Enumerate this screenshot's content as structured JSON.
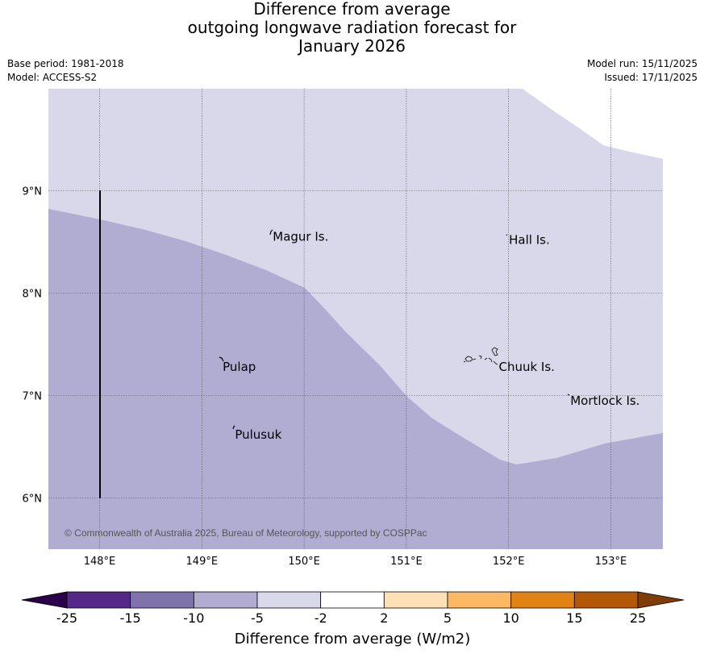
{
  "title": {
    "line1": "Difference from average",
    "line2": "outgoing longwave radiation forecast for",
    "line3": "January 2026"
  },
  "meta": {
    "base_period": "Base period: 1981-2018",
    "model": "Model: ACCESS-S2",
    "model_run": "Model run: 15/11/2025",
    "issued": "Issued: 17/11/2025"
  },
  "map": {
    "lon_ticks": [
      "148°E",
      "149°E",
      "150°E",
      "151°E",
      "152°E",
      "153°E"
    ],
    "lat_ticks": [
      "9°N",
      "8°N",
      "7°N",
      "6°N"
    ],
    "places": [
      {
        "name": "Magur Is.",
        "lon": 149.67,
        "lat": 8.55
      },
      {
        "name": "Hall Is.",
        "lon": 151.98,
        "lat": 8.52
      },
      {
        "name": "Pulap",
        "lon": 149.18,
        "lat": 7.28
      },
      {
        "name": "Chuuk Is.",
        "lon": 151.88,
        "lat": 7.28
      },
      {
        "name": "Mortlock Is.",
        "lon": 152.58,
        "lat": 6.95
      },
      {
        "name": "Pulusuk",
        "lon": 149.3,
        "lat": 6.62
      }
    ],
    "copyright": "© Commonwealth of Australia 2025, Bureau of Meteorology, supported by COSPPac",
    "regions": [
      {
        "band": "-10 to -5",
        "color": "#b1acd2"
      },
      {
        "band": "-5 to -2",
        "color": "#d8d8ea"
      }
    ]
  },
  "colorbar": {
    "ticks": [
      "-25",
      "-15",
      "-10",
      "-5",
      "-2",
      "2",
      "5",
      "10",
      "15",
      "25"
    ],
    "colors": [
      "#2d004b",
      "#542788",
      "#8073ac",
      "#b2abd2",
      "#d8daeb",
      "#ffffff",
      "#fee0b6",
      "#fdb863",
      "#e08214",
      "#b35806",
      "#7f3b08"
    ],
    "label": "Difference from average (W/m2)"
  }
}
